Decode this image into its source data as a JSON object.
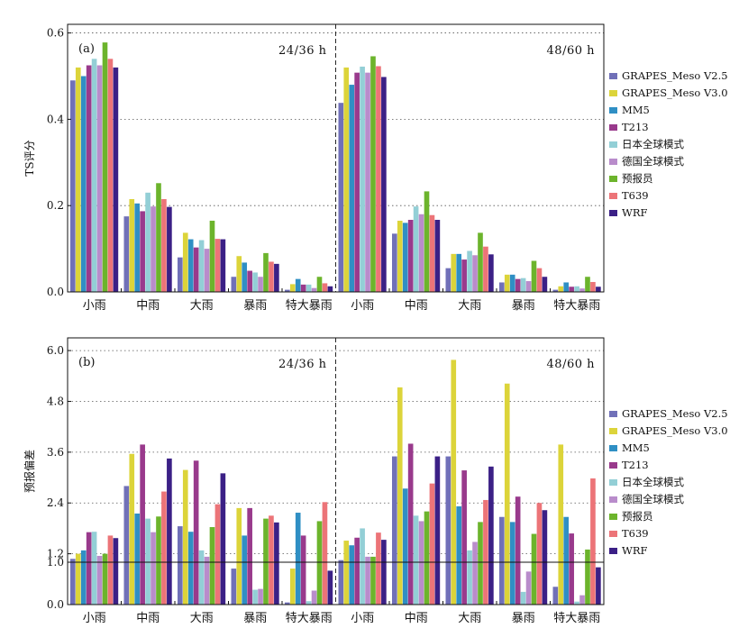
{
  "chart_data": [
    {
      "type": "bar",
      "panel_label": "(a)",
      "ylabel": "TS评分",
      "ylim": [
        0,
        0.62
      ],
      "yticks": [
        "0.0",
        "0.2",
        "0.4",
        "0.6"
      ],
      "ytick_values": [
        0,
        0.2,
        0.4,
        0.6
      ],
      "grid": "horizontal dotted",
      "groups": [
        {
          "label": "24/36 h",
          "categories": [
            "小雨",
            "中雨",
            "大雨",
            "暴雨",
            "特大暴雨"
          ],
          "series_values": [
            [
              0.49,
              0.175,
              0.08,
              0.035,
              0.005
            ],
            [
              0.52,
              0.215,
              0.137,
              0.083,
              0.018
            ],
            [
              0.5,
              0.205,
              0.122,
              0.068,
              0.03
            ],
            [
              0.525,
              0.187,
              0.103,
              0.049,
              0.017
            ],
            [
              0.54,
              0.23,
              0.12,
              0.045,
              0.017
            ],
            [
              0.525,
              0.198,
              0.1,
              0.035,
              0.009
            ],
            [
              0.578,
              0.252,
              0.165,
              0.09,
              0.035
            ],
            [
              0.54,
              0.215,
              0.123,
              0.07,
              0.02
            ],
            [
              0.52,
              0.197,
              0.122,
              0.065,
              0.013
            ]
          ]
        },
        {
          "label": "48/60 h",
          "categories": [
            "小雨",
            "中雨",
            "大雨",
            "暴雨",
            "特大暴雨"
          ],
          "series_values": [
            [
              0.438,
              0.135,
              0.055,
              0.022,
              0.005
            ],
            [
              0.52,
              0.165,
              0.088,
              0.04,
              0.013
            ],
            [
              0.48,
              0.16,
              0.088,
              0.04,
              0.022
            ],
            [
              0.508,
              0.167,
              0.075,
              0.03,
              0.012
            ],
            [
              0.522,
              0.198,
              0.095,
              0.032,
              0.013
            ],
            [
              0.508,
              0.18,
              0.085,
              0.025,
              0.008
            ],
            [
              0.546,
              0.233,
              0.137,
              0.072,
              0.035
            ],
            [
              0.523,
              0.178,
              0.105,
              0.055,
              0.023
            ],
            [
              0.498,
              0.167,
              0.087,
              0.035,
              0.012
            ]
          ]
        }
      ]
    },
    {
      "type": "bar",
      "panel_label": "(b)",
      "ylabel": "预报偏差",
      "ylim": [
        0,
        6.3
      ],
      "yticks": [
        "0.0",
        "1.0",
        "1.2",
        "2.4",
        "3.6",
        "4.8",
        "6.0"
      ],
      "ytick_values": [
        0,
        1.0,
        1.2,
        2.4,
        3.6,
        4.8,
        6.0
      ],
      "grid": "horizontal dotted",
      "reference_line": 1.0,
      "groups": [
        {
          "label": "24/36 h",
          "categories": [
            "小雨",
            "中雨",
            "大雨",
            "暴雨",
            "特大暴雨"
          ],
          "series_values": [
            [
              1.08,
              2.8,
              1.85,
              0.85,
              0.05
            ],
            [
              1.2,
              3.56,
              3.18,
              2.28,
              0.85
            ],
            [
              1.28,
              2.15,
              1.72,
              1.63,
              2.17
            ],
            [
              1.71,
              3.78,
              3.4,
              2.28,
              1.63
            ],
            [
              1.72,
              2.03,
              1.28,
              0.35,
              0.08
            ],
            [
              1.15,
              1.71,
              1.13,
              0.37,
              0.33
            ],
            [
              1.2,
              2.08,
              1.83,
              2.03,
              1.97
            ],
            [
              1.63,
              2.67,
              2.37,
              2.1,
              2.42
            ],
            [
              1.57,
              3.45,
              3.1,
              1.94,
              0.8
            ]
          ]
        },
        {
          "label": "48/60 h",
          "categories": [
            "小雨",
            "中雨",
            "大雨",
            "暴雨",
            "特大暴雨"
          ],
          "series_values": [
            [
              1.05,
              3.5,
              3.5,
              2.07,
              0.42
            ],
            [
              1.51,
              5.13,
              5.78,
              5.22,
              3.78
            ],
            [
              1.4,
              2.74,
              2.32,
              1.95,
              2.07
            ],
            [
              1.58,
              3.8,
              3.17,
              2.55,
              1.68
            ],
            [
              1.8,
              2.1,
              1.28,
              0.3,
              0.07
            ],
            [
              1.13,
              1.97,
              1.48,
              0.78,
              0.22
            ],
            [
              1.13,
              2.2,
              1.95,
              1.67,
              1.3
            ],
            [
              1.7,
              2.86,
              2.47,
              2.4,
              2.98
            ],
            [
              1.53,
              3.5,
              3.26,
              2.23,
              0.88
            ]
          ]
        }
      ]
    }
  ],
  "legend": [
    {
      "name": "GRAPES_Meso V2.5",
      "color": "#7070b8"
    },
    {
      "name": "GRAPES_Meso V3.0",
      "color": "#dcd43a"
    },
    {
      "name": "MM5",
      "color": "#2f8fc4"
    },
    {
      "name": "T213",
      "color": "#993a8c"
    },
    {
      "name": "日本全球模式",
      "color": "#93cfd6"
    },
    {
      "name": "德国全球模式",
      "color": "#b98ccb"
    },
    {
      "name": "预报员",
      "color": "#6cb42c"
    },
    {
      "name": "T639",
      "color": "#ec7478"
    },
    {
      "name": "WRF",
      "color": "#3b2086"
    }
  ]
}
